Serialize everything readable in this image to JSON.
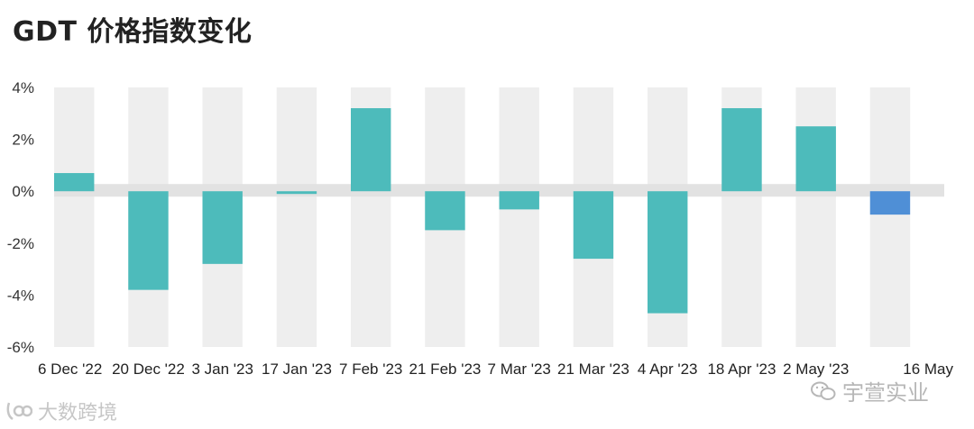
{
  "title": "GDT 价格指数变化",
  "chart_data": {
    "type": "bar",
    "categories": [
      "6 Dec '22",
      "20 Dec '22",
      "3 Jan '23",
      "17 Jan '23",
      "7 Feb '23",
      "21 Feb '23",
      "7 Mar '23",
      "21 Mar '23",
      "4 Apr '23",
      "18 Apr '23",
      "2 May '23",
      "16 May"
    ],
    "values": [
      0.7,
      -3.8,
      -2.8,
      -0.1,
      3.2,
      -1.5,
      -0.7,
      -2.6,
      -4.7,
      3.2,
      2.5,
      -0.9
    ],
    "ylim": [
      -6,
      4
    ],
    "yticks": [
      4,
      2,
      0,
      -2,
      -4,
      -6
    ],
    "ytick_labels": [
      "4%",
      "2%",
      "0%",
      "-2%",
      "-4%",
      "-6%"
    ],
    "xlabel": "",
    "ylabel": "",
    "grid": true,
    "colors": {
      "bar": "#4dbbbb",
      "highlight": "#4f8fd6",
      "band": "#eeeeee",
      "zero_band": "#e2e2e2"
    },
    "highlight_index": 11
  },
  "watermarks": {
    "left_text": "大数跨境",
    "right_text": "宇萱实业"
  }
}
